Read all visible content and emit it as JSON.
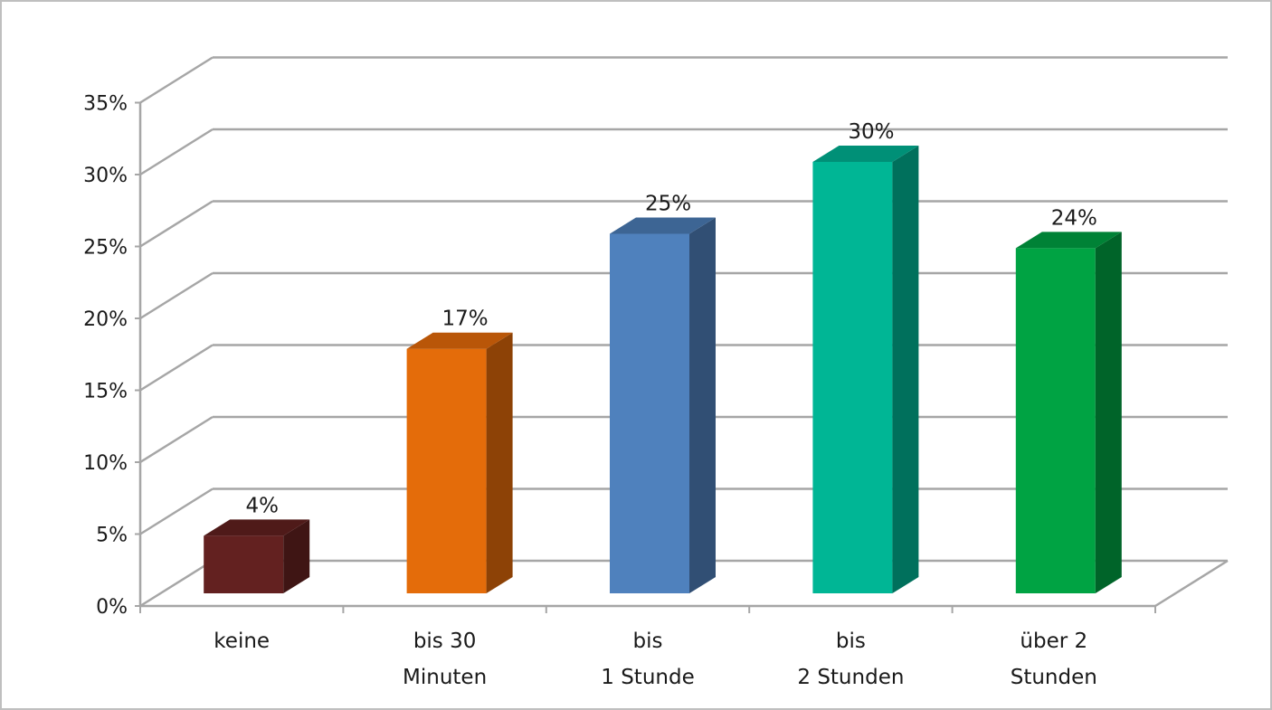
{
  "chart_data": {
    "type": "bar",
    "title": "",
    "xlabel": "",
    "ylabel": "",
    "ylim": [
      0,
      35
    ],
    "y_ticks": [
      0,
      5,
      10,
      15,
      20,
      25,
      30,
      35
    ],
    "y_tick_labels": [
      "0%",
      "5%",
      "10%",
      "15%",
      "20%",
      "25%",
      "30%",
      "35%"
    ],
    "grid": true,
    "three_d": true,
    "categories": [
      [
        "keine"
      ],
      [
        "bis 30",
        "Minuten"
      ],
      [
        "bis",
        "1 Stunde"
      ],
      [
        "bis",
        "2 Stunden"
      ],
      [
        "über 2",
        "Stunden"
      ]
    ],
    "values": [
      4,
      17,
      25,
      30,
      24
    ],
    "data_labels": [
      "4%",
      "17%",
      "25%",
      "30%",
      "24%"
    ],
    "colors": [
      {
        "front": "#632120",
        "side": "#3f1514",
        "top": "#4f1a19"
      },
      {
        "front": "#e46c0a",
        "side": "#8d4206",
        "top": "#b95608"
      },
      {
        "front": "#4f81bd",
        "side": "#314f74",
        "top": "#3d6594"
      },
      {
        "front": "#00b695",
        "side": "#00705c",
        "top": "#009077"
      },
      {
        "front": "#00a343",
        "side": "#006429",
        "top": "#008236"
      }
    ],
    "gridline_color": "#a6a6a6",
    "axis_color": "#a6a6a6"
  }
}
